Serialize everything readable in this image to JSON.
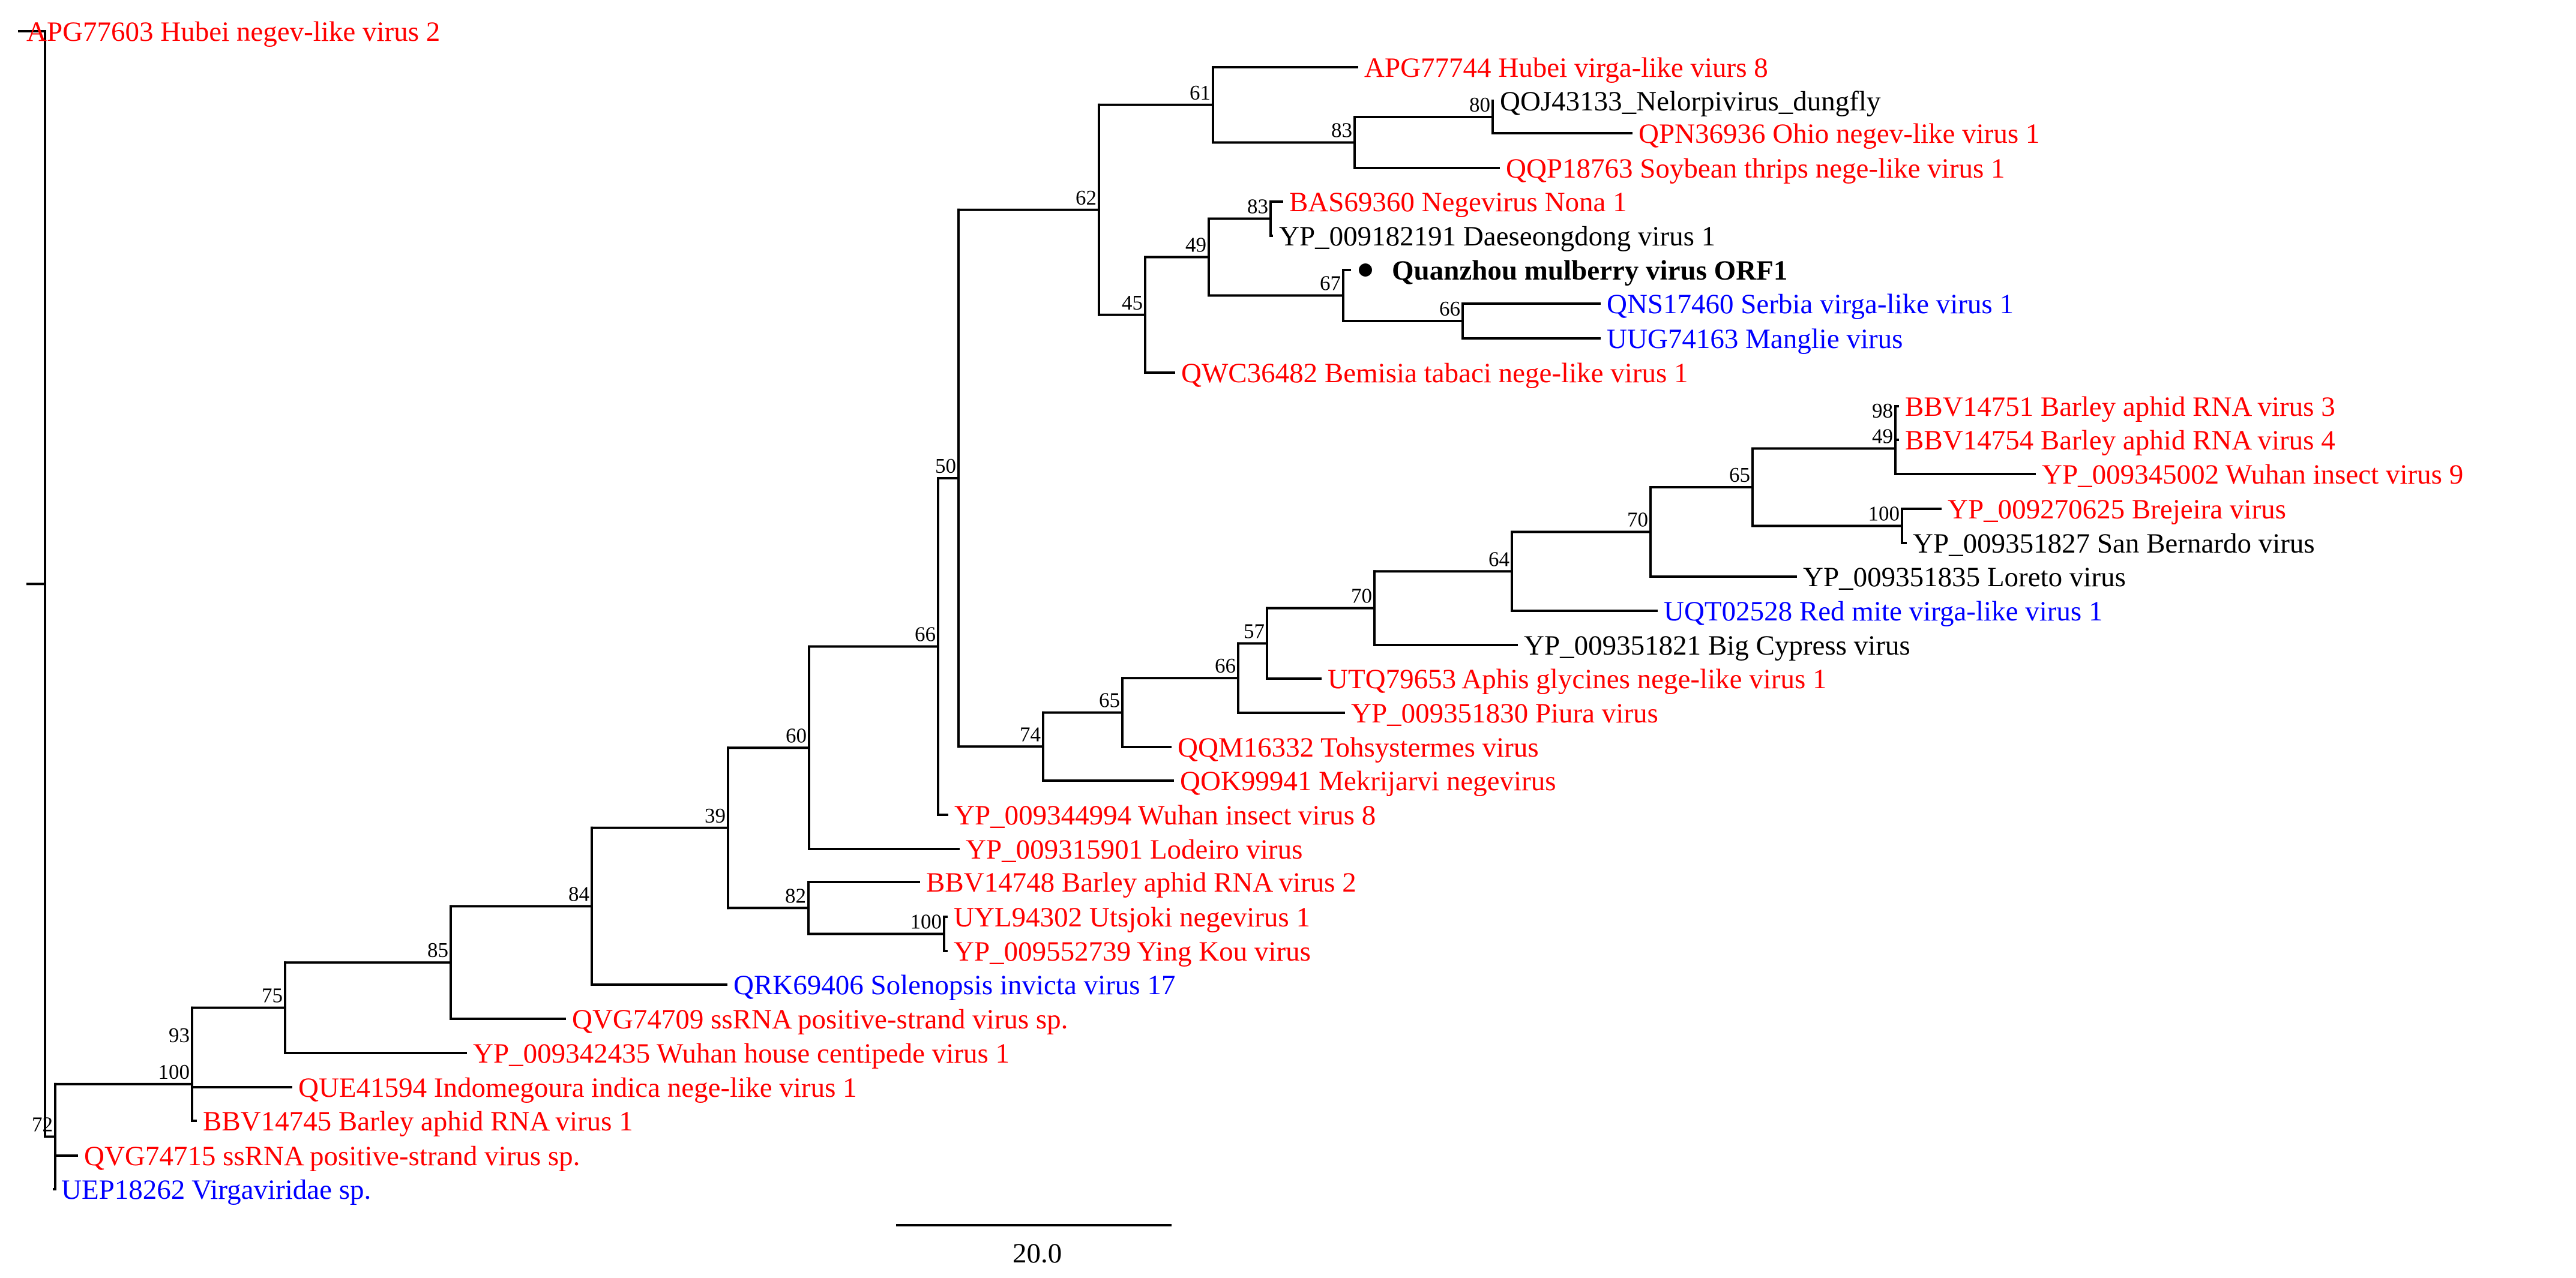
{
  "colors": {
    "red": "#ff0000",
    "blue": "#0000ff",
    "black": "#000000"
  },
  "leaves": [
    {
      "id": "L0",
      "label": "APG77603 Hubei negev-like virus 2",
      "color": "red"
    },
    {
      "id": "L1",
      "label": "APG77744 Hubei virga-like viurs 8",
      "color": "red"
    },
    {
      "id": "L2",
      "label": "QOJ43133_Nelorpivirus_dungfly",
      "color": "black"
    },
    {
      "id": "L3",
      "label": "QPN36936 Ohio negev-like virus 1",
      "color": "red"
    },
    {
      "id": "L4",
      "label": "QQP18763 Soybean thrips nege-like virus 1",
      "color": "red"
    },
    {
      "id": "L5",
      "label": "BAS69360 Negevirus Nona 1",
      "color": "red"
    },
    {
      "id": "L6",
      "label": "YP_009182191 Daeseongdong virus 1",
      "color": "black"
    },
    {
      "id": "L7",
      "label": "Quanzhou mulberry virus ORF1",
      "color": "black",
      "bold": true,
      "marker": "filled-circle"
    },
    {
      "id": "L8",
      "label": "QNS17460 Serbia virga-like virus 1",
      "color": "blue"
    },
    {
      "id": "L9",
      "label": "UUG74163 Manglie virus",
      "color": "blue"
    },
    {
      "id": "L10",
      "label": "QWC36482 Bemisia tabaci nege-like virus 1",
      "color": "red"
    },
    {
      "id": "L11",
      "label": "BBV14751 Barley aphid RNA virus 3",
      "color": "red"
    },
    {
      "id": "L12",
      "label": "BBV14754 Barley aphid RNA virus 4",
      "color": "red"
    },
    {
      "id": "L13",
      "label": "YP_009345002 Wuhan insect virus 9",
      "color": "red"
    },
    {
      "id": "L14",
      "label": "YP_009270625 Brejeira virus",
      "color": "red"
    },
    {
      "id": "L15",
      "label": "YP_009351827 San Bernardo virus",
      "color": "black"
    },
    {
      "id": "L16",
      "label": "YP_009351835 Loreto virus",
      "color": "black"
    },
    {
      "id": "L17",
      "label": "UQT02528 Red mite virga-like virus 1",
      "color": "blue"
    },
    {
      "id": "L18",
      "label": "YP_009351821 Big Cypress virus",
      "color": "black"
    },
    {
      "id": "L19",
      "label": "UTQ79653 Aphis glycines nege-like virus 1",
      "color": "red"
    },
    {
      "id": "L20",
      "label": "YP_009351830 Piura virus",
      "color": "red"
    },
    {
      "id": "L21",
      "label": "QQM16332 Tohsystermes virus",
      "color": "red"
    },
    {
      "id": "L22",
      "label": "QOK99941 Mekrijarvi negevirus",
      "color": "red"
    },
    {
      "id": "L23",
      "label": "YP_009344994 Wuhan insect virus 8",
      "color": "red"
    },
    {
      "id": "L24",
      "label": "YP_009315901 Lodeiro virus",
      "color": "red"
    },
    {
      "id": "L25",
      "label": "BBV14748 Barley aphid RNA virus 2",
      "color": "red"
    },
    {
      "id": "L26",
      "label": "UYL94302 Utsjoki negevirus 1",
      "color": "red"
    },
    {
      "id": "L27",
      "label": "YP_009552739 Ying Kou virus",
      "color": "red"
    },
    {
      "id": "L28",
      "label": "QRK69406 Solenopsis invicta virus 17",
      "color": "blue"
    },
    {
      "id": "L29",
      "label": "QVG74709 ssRNA positive-strand virus sp.",
      "color": "red"
    },
    {
      "id": "L30",
      "label": "YP_009342435 Wuhan house centipede virus 1",
      "color": "red"
    },
    {
      "id": "L31",
      "label": "QUE41594 Indomegoura indica nege-like virus 1",
      "color": "red"
    },
    {
      "id": "L32",
      "label": "BBV14745 Barley aphid RNA virus 1",
      "color": "red"
    },
    {
      "id": "L33",
      "label": "QVG74715 ssRNA positive-strand virus sp.",
      "color": "red"
    },
    {
      "id": "L34",
      "label": "UEP18262 Virgaviridae sp.",
      "color": "blue"
    }
  ],
  "internal_nodes": [
    {
      "id": "N80",
      "support": "80",
      "children": [
        "L2",
        "L3"
      ]
    },
    {
      "id": "N83a",
      "support": "83",
      "children": [
        "N80",
        "L4"
      ]
    },
    {
      "id": "N61",
      "support": "61",
      "children": [
        "L1",
        "N83a"
      ]
    },
    {
      "id": "N83b",
      "support": "83",
      "children": [
        "L5",
        "L6"
      ]
    },
    {
      "id": "N66a",
      "support": "66",
      "children": [
        "L8",
        "L9"
      ]
    },
    {
      "id": "N67",
      "support": "67",
      "children": [
        "L7",
        "N66a"
      ]
    },
    {
      "id": "N49a",
      "support": "49",
      "children": [
        "N83b",
        "N67"
      ]
    },
    {
      "id": "N45",
      "support": "45",
      "children": [
        "N49a",
        "L10"
      ]
    },
    {
      "id": "N62",
      "support": "62",
      "children": [
        "N61",
        "N45"
      ]
    },
    {
      "id": "N98",
      "support": "98",
      "children": [
        "L11",
        "L12"
      ]
    },
    {
      "id": "N49b",
      "support": "49",
      "children": [
        "N98",
        "L13"
      ]
    },
    {
      "id": "N100a",
      "support": "100",
      "children": [
        "L14",
        "L15"
      ]
    },
    {
      "id": "N65a",
      "support": "65",
      "children": [
        "N49b",
        "N100a"
      ]
    },
    {
      "id": "N70a",
      "support": "70",
      "children": [
        "N65a",
        "L16"
      ]
    },
    {
      "id": "N64",
      "support": "64",
      "children": [
        "N70a",
        "L17"
      ]
    },
    {
      "id": "N70b",
      "support": "70",
      "children": [
        "N64",
        "L18"
      ]
    },
    {
      "id": "N57",
      "support": "57",
      "children": [
        "N70b",
        "L19"
      ]
    },
    {
      "id": "N66b",
      "support": "66",
      "children": [
        "N57",
        "L20"
      ]
    },
    {
      "id": "N65b",
      "support": "65",
      "children": [
        "N66b",
        "L21"
      ]
    },
    {
      "id": "N74",
      "support": "74",
      "children": [
        "N65b",
        "L22"
      ]
    },
    {
      "id": "N50",
      "support": "50",
      "children": [
        "N62",
        "N74"
      ]
    },
    {
      "id": "N66c",
      "support": "66",
      "children": [
        "N50",
        "L23"
      ]
    },
    {
      "id": "N60",
      "support": "60",
      "children": [
        "N66c",
        "L24"
      ]
    },
    {
      "id": "N100b",
      "support": "100",
      "children": [
        "L26",
        "L27"
      ]
    },
    {
      "id": "N82",
      "support": "82",
      "children": [
        "L25",
        "N100b"
      ]
    },
    {
      "id": "N39",
      "support": "39",
      "children": [
        "N60",
        "N82"
      ]
    },
    {
      "id": "N84",
      "support": "84",
      "children": [
        "N39",
        "L28"
      ]
    },
    {
      "id": "N85",
      "support": "85",
      "children": [
        "N84",
        "L29"
      ]
    },
    {
      "id": "N75",
      "support": "75",
      "children": [
        "N85",
        "L30"
      ]
    },
    {
      "id": "N93",
      "support": "93",
      "children": [
        "N75",
        "L31"
      ]
    },
    {
      "id": "N100c",
      "support": "100",
      "children": [
        "N93",
        "L32"
      ]
    },
    {
      "id": "N72",
      "support": "72",
      "children": [
        "N100c",
        "L33",
        "L34"
      ]
    },
    {
      "id": "ROOT",
      "support": "",
      "children": [
        "L0",
        "N72"
      ]
    }
  ],
  "scale_bar": {
    "label": "20.0"
  }
}
